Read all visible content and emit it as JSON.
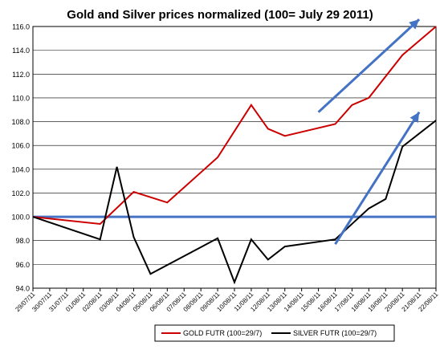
{
  "chart_data": {
    "type": "line",
    "title": "Gold and Silver prices normalized (100= July 29 2011)",
    "xlabel": "",
    "ylabel": "",
    "ylim": [
      94,
      116
    ],
    "y_ticks": [
      "94.0",
      "96.0",
      "98.0",
      "100.0",
      "102.0",
      "104.0",
      "106.0",
      "108.0",
      "110.0",
      "112.0",
      "114.0",
      "116.0"
    ],
    "categories": [
      "29/07/11",
      "30/07/11",
      "31/07/11",
      "01/08/11",
      "02/08/11",
      "03/08/11",
      "04/08/11",
      "05/08/11",
      "06/08/11",
      "07/08/11",
      "08/08/11",
      "09/08/11",
      "10/08/11",
      "11/08/11",
      "12/08/11",
      "13/08/11",
      "14/08/11",
      "15/08/11",
      "16/08/11",
      "17/08/11",
      "18/08/11",
      "19/08/11",
      "20/08/11",
      "21/08/11",
      "22/08/11"
    ],
    "grid": true,
    "legend_position": "bottom",
    "series": [
      {
        "name": "GOLD  FUTR (100=29/7)",
        "color": "#cc0000",
        "values": [
          100.0,
          null,
          null,
          null,
          99.4,
          null,
          102.1,
          null,
          101.2,
          null,
          null,
          105.0,
          null,
          109.4,
          107.4,
          106.8,
          null,
          null,
          107.8,
          109.4,
          110.0,
          null,
          113.6,
          null,
          116.0
        ]
      },
      {
        "name": "SILVER  FUTR (100=29/7)",
        "color": "#000000",
        "values": [
          100.0,
          null,
          null,
          null,
          98.1,
          104.2,
          98.3,
          95.2,
          null,
          null,
          null,
          98.2,
          94.5,
          98.1,
          96.4,
          97.5,
          null,
          null,
          98.1,
          null,
          100.7,
          101.5,
          105.9,
          null,
          108.1
        ]
      }
    ],
    "reference_line": {
      "y": 100.0,
      "color": "#4472c4"
    },
    "annotations": [
      {
        "type": "arrow",
        "color": "#4472c4",
        "from": {
          "x": "15/08/11",
          "y": 108.8
        },
        "to": {
          "x": "21/08/11",
          "y": 116.6
        }
      },
      {
        "type": "arrow",
        "color": "#4472c4",
        "from": {
          "x": "16/08/11",
          "y": 97.7
        },
        "to": {
          "x": "21/08/11",
          "y": 108.8
        }
      }
    ]
  }
}
